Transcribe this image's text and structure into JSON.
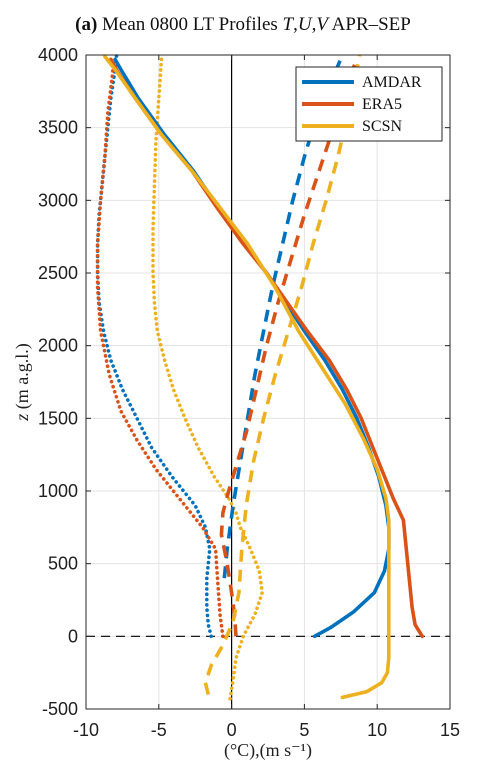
{
  "chart_data": {
    "type": "line",
    "title_parts": [
      {
        "text": "(a)",
        "style": "bold"
      },
      {
        "text": " Mean 0800 LT Profiles ",
        "style": "normal"
      },
      {
        "text": "T",
        "style": "italic"
      },
      {
        "text": ",",
        "style": "normal"
      },
      {
        "text": "U",
        "style": "italic"
      },
      {
        "text": ",",
        "style": "normal"
      },
      {
        "text": "V",
        "style": "italic"
      },
      {
        "text": " APR–SEP",
        "style": "normal"
      }
    ],
    "xlabel": "(°C),(m s⁻¹)",
    "ylabel_parts": [
      {
        "text": "z",
        "style": "italic"
      },
      {
        "text": " (m a.g.l.)",
        "style": "normal"
      }
    ],
    "xlim": [
      -10,
      15
    ],
    "ylim": [
      -500,
      4000
    ],
    "xticks": [
      -10,
      -5,
      0,
      5,
      10,
      15
    ],
    "yticks": [
      -500,
      0,
      500,
      1000,
      1500,
      2000,
      2500,
      3000,
      3500,
      4000
    ],
    "grid": true,
    "legend_position": "top-right",
    "legend": [
      {
        "label": "AMDAR",
        "color": "#0072BD"
      },
      {
        "label": "ERA5",
        "color": "#D95319"
      },
      {
        "label": "SCSN",
        "color": "#EDB120"
      }
    ],
    "reference_lines": [
      {
        "orientation": "vertical",
        "value": 0,
        "style": "solid",
        "color": "#000000"
      },
      {
        "orientation": "horizontal",
        "value": 0,
        "style": "dashed",
        "color": "#000000"
      }
    ],
    "series": [
      {
        "name": "AMDAR",
        "variable": "T",
        "line_style": "solid",
        "color": "#0072BD",
        "points": [
          [
            5.7,
            0
          ],
          [
            6.8,
            60
          ],
          [
            8.4,
            170
          ],
          [
            9.8,
            300
          ],
          [
            10.5,
            450
          ],
          [
            10.8,
            600
          ],
          [
            10.8,
            750
          ],
          [
            10.6,
            900
          ],
          [
            10.1,
            1100
          ],
          [
            9.4,
            1300
          ],
          [
            8.6,
            1500
          ],
          [
            7.6,
            1700
          ],
          [
            6.4,
            1900
          ],
          [
            5.0,
            2100
          ],
          [
            3.7,
            2300
          ],
          [
            2.4,
            2500
          ],
          [
            0.9,
            2700
          ],
          [
            -0.9,
            2950
          ],
          [
            -2.6,
            3200
          ],
          [
            -4.6,
            3450
          ],
          [
            -6.4,
            3700
          ],
          [
            -7.6,
            3900
          ],
          [
            -8.0,
            3970
          ]
        ]
      },
      {
        "name": "AMDAR",
        "variable": "U",
        "line_style": "dashed",
        "color": "#0072BD",
        "points": [
          [
            -0.5,
            400
          ],
          [
            -0.3,
            600
          ],
          [
            0.1,
            900
          ],
          [
            0.6,
            1200
          ],
          [
            1.1,
            1500
          ],
          [
            1.6,
            1800
          ],
          [
            2.2,
            2100
          ],
          [
            2.8,
            2400
          ],
          [
            3.5,
            2700
          ],
          [
            4.2,
            3000
          ],
          [
            5.0,
            3300
          ],
          [
            5.9,
            3600
          ],
          [
            7.0,
            3850
          ],
          [
            7.6,
            4000
          ]
        ]
      },
      {
        "name": "AMDAR",
        "variable": "V",
        "line_style": "dotted",
        "color": "#0072BD",
        "points": [
          [
            -1.4,
            0
          ],
          [
            -1.6,
            80
          ],
          [
            -1.7,
            200
          ],
          [
            -1.7,
            400
          ],
          [
            -1.5,
            600
          ],
          [
            -1.8,
            750
          ],
          [
            -2.5,
            900
          ],
          [
            -4.1,
            1100
          ],
          [
            -5.5,
            1300
          ],
          [
            -6.5,
            1500
          ],
          [
            -7.5,
            1700
          ],
          [
            -8.3,
            1900
          ],
          [
            -8.8,
            2100
          ],
          [
            -9.1,
            2300
          ],
          [
            -9.2,
            2500
          ],
          [
            -9.2,
            2700
          ],
          [
            -9.1,
            2900
          ],
          [
            -8.9,
            3100
          ],
          [
            -8.7,
            3300
          ],
          [
            -8.5,
            3500
          ],
          [
            -8.3,
            3700
          ],
          [
            -8.0,
            3900
          ],
          [
            -7.9,
            4000
          ]
        ]
      },
      {
        "name": "ERA5",
        "variable": "T",
        "line_style": "solid",
        "color": "#D95319",
        "points": [
          [
            13.1,
            0
          ],
          [
            12.6,
            80
          ],
          [
            12.4,
            200
          ],
          [
            12.2,
            400
          ],
          [
            12.0,
            600
          ],
          [
            11.8,
            800
          ],
          [
            11.1,
            950
          ],
          [
            10.5,
            1100
          ],
          [
            9.7,
            1300
          ],
          [
            8.9,
            1500
          ],
          [
            7.9,
            1700
          ],
          [
            6.7,
            1900
          ],
          [
            5.2,
            2100
          ],
          [
            3.8,
            2300
          ],
          [
            2.4,
            2500
          ],
          [
            0.8,
            2700
          ],
          [
            -1.0,
            2950
          ],
          [
            -2.7,
            3200
          ],
          [
            -4.8,
            3450
          ],
          [
            -6.6,
            3700
          ],
          [
            -7.8,
            3880
          ],
          [
            -8.3,
            3970
          ]
        ]
      },
      {
        "name": "ERA5",
        "variable": "U",
        "line_style": "dashed",
        "color": "#D95319",
        "points": [
          [
            0.3,
            0
          ],
          [
            0.2,
            150
          ],
          [
            0.0,
            300
          ],
          [
            -0.3,
            500
          ],
          [
            -0.7,
            700
          ],
          [
            -0.6,
            850
          ],
          [
            -0.2,
            1000
          ],
          [
            0.4,
            1200
          ],
          [
            1.0,
            1400
          ],
          [
            1.7,
            1700
          ],
          [
            2.4,
            2000
          ],
          [
            3.2,
            2300
          ],
          [
            4.1,
            2600
          ],
          [
            5.0,
            2900
          ],
          [
            6.0,
            3200
          ],
          [
            7.0,
            3500
          ],
          [
            7.8,
            3750
          ],
          [
            8.5,
            3950
          ]
        ]
      },
      {
        "name": "ERA5",
        "variable": "V",
        "line_style": "dotted",
        "color": "#D95319",
        "points": [
          [
            -0.6,
            0
          ],
          [
            -0.8,
            150
          ],
          [
            -0.9,
            300
          ],
          [
            -1.0,
            450
          ],
          [
            -1.1,
            600
          ],
          [
            -2.0,
            750
          ],
          [
            -3.6,
            950
          ],
          [
            -5.2,
            1150
          ],
          [
            -6.5,
            1350
          ],
          [
            -7.6,
            1550
          ],
          [
            -8.4,
            1800
          ],
          [
            -9.0,
            2100
          ],
          [
            -9.2,
            2400
          ],
          [
            -9.2,
            2700
          ],
          [
            -9.0,
            3000
          ],
          [
            -8.7,
            3300
          ],
          [
            -8.5,
            3600
          ],
          [
            -8.2,
            3850
          ],
          [
            -8.1,
            3950
          ]
        ]
      },
      {
        "name": "SCSN",
        "variable": "T",
        "line_style": "solid",
        "color": "#EDB120",
        "points": [
          [
            7.6,
            -420
          ],
          [
            9.3,
            -380
          ],
          [
            10.3,
            -320
          ],
          [
            10.7,
            -250
          ],
          [
            10.8,
            -150
          ],
          [
            10.8,
            0
          ],
          [
            10.8,
            200
          ],
          [
            10.8,
            400
          ],
          [
            10.8,
            600
          ],
          [
            10.8,
            800
          ],
          [
            10.6,
            950
          ],
          [
            10.0,
            1150
          ],
          [
            9.1,
            1350
          ],
          [
            7.8,
            1600
          ],
          [
            6.2,
            1850
          ],
          [
            4.6,
            2100
          ],
          [
            3.0,
            2400
          ],
          [
            1.1,
            2700
          ],
          [
            -0.8,
            2950
          ],
          [
            -2.7,
            3200
          ],
          [
            -4.8,
            3450
          ],
          [
            -6.6,
            3700
          ],
          [
            -8.0,
            3900
          ],
          [
            -8.7,
            3990
          ]
        ]
      },
      {
        "name": "SCSN",
        "variable": "U",
        "line_style": "dashed",
        "color": "#EDB120",
        "points": [
          [
            -1.6,
            -400
          ],
          [
            -1.8,
            -320
          ],
          [
            -1.4,
            -200
          ],
          [
            -0.6,
            -60
          ],
          [
            0.1,
            100
          ],
          [
            0.5,
            300
          ],
          [
            0.7,
            600
          ],
          [
            1.0,
            900
          ],
          [
            1.5,
            1200
          ],
          [
            2.2,
            1500
          ],
          [
            3.0,
            1800
          ],
          [
            3.9,
            2100
          ],
          [
            4.8,
            2400
          ],
          [
            5.6,
            2700
          ],
          [
            6.5,
            3000
          ],
          [
            7.3,
            3300
          ],
          [
            8.0,
            3600
          ],
          [
            8.5,
            3850
          ],
          [
            8.8,
            4000
          ]
        ]
      },
      {
        "name": "SCSN",
        "variable": "V",
        "line_style": "dotted",
        "color": "#EDB120",
        "points": [
          [
            -0.1,
            -430
          ],
          [
            0.1,
            -300
          ],
          [
            0.3,
            -150
          ],
          [
            0.8,
            0
          ],
          [
            1.6,
            150
          ],
          [
            2.1,
            300
          ],
          [
            1.9,
            450
          ],
          [
            1.3,
            600
          ],
          [
            0.6,
            750
          ],
          [
            0.3,
            850
          ],
          [
            -0.2,
            950
          ],
          [
            -1.2,
            1100
          ],
          [
            -2.3,
            1300
          ],
          [
            -3.2,
            1500
          ],
          [
            -4.0,
            1700
          ],
          [
            -4.6,
            1900
          ],
          [
            -5.1,
            2100
          ],
          [
            -5.3,
            2300
          ],
          [
            -5.4,
            2500
          ],
          [
            -5.4,
            2800
          ],
          [
            -5.3,
            3100
          ],
          [
            -5.2,
            3400
          ],
          [
            -5.0,
            3700
          ],
          [
            -4.9,
            3850
          ],
          [
            -4.8,
            4000
          ]
        ]
      }
    ]
  }
}
